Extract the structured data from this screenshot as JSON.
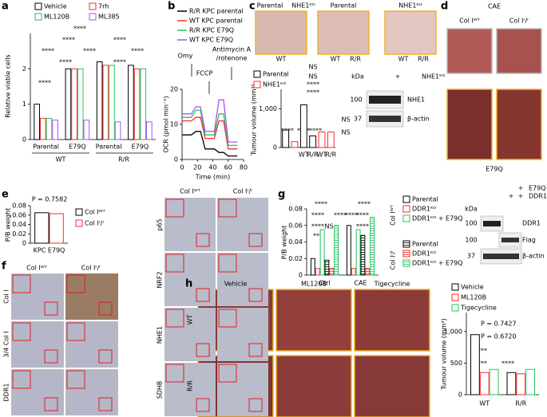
{
  "panel_labels": [
    "a",
    "b",
    "c",
    "d",
    "e",
    "f",
    "g",
    "h"
  ],
  "chart_data": [
    {
      "type": "bar",
      "ylabel": "Relative viable cells",
      "categories": [
        "Parental",
        "E79Q",
        "Parental",
        "E79Q"
      ],
      "group_labels": [
        "WT",
        "R/R"
      ],
      "series": [
        {
          "name": "Vehicle",
          "color": "#000000",
          "values": [
            1.0,
            2.0,
            2.2,
            2.1
          ]
        },
        {
          "name": "7rh",
          "color": "#ff2a2a",
          "values": [
            0.6,
            2.0,
            2.1,
            2.0
          ]
        },
        {
          "name": "ML120B",
          "color": "#22c55e",
          "values": [
            0.6,
            2.0,
            2.1,
            2.0
          ]
        },
        {
          "name": "ML385",
          "color": "#a855f7",
          "values": [
            0.55,
            0.55,
            0.5,
            0.5
          ]
        }
      ],
      "ylim": [
        0,
        3
      ],
      "yticks": [
        0,
        1,
        2
      ],
      "annotations": [
        "****",
        "****",
        "****",
        "****",
        "****",
        "****",
        "****",
        "****",
        "****"
      ]
    },
    {
      "type": "line",
      "xlabel": "Time (min)",
      "ylabel": "OCR (pmol min⁻¹)",
      "x": [
        0,
        6,
        12,
        18,
        24,
        30,
        36,
        42,
        48,
        54,
        60,
        66,
        72
      ],
      "series": [
        {
          "name": "R/R KPC parental",
          "color": "#000000",
          "values": [
            7,
            7,
            7,
            8,
            8,
            3,
            3,
            3,
            2,
            2,
            1,
            1,
            1
          ]
        },
        {
          "name": "WT KPC parental",
          "color": "#ff2a2a",
          "values": [
            11,
            11,
            11,
            12,
            12,
            6,
            6,
            6,
            11,
            11,
            3,
            3,
            3
          ]
        },
        {
          "name": "R/R KPC E79Q",
          "color": "#22c55e",
          "values": [
            12,
            12,
            12,
            14,
            14,
            7,
            7,
            7,
            13,
            13,
            4,
            4,
            4
          ]
        },
        {
          "name": "WT KPC E79Q",
          "color": "#a855f7",
          "values": [
            13,
            13,
            13,
            15,
            15,
            8,
            8,
            8,
            17,
            17,
            5,
            5,
            5
          ]
        }
      ],
      "xlim": [
        0,
        80
      ],
      "xticks": [
        0,
        20,
        40,
        60,
        80
      ],
      "ylim": [
        0,
        20
      ],
      "yticks": [
        0,
        10,
        20
      ],
      "annotations": [
        "Omy",
        "FCCP",
        "Antimycin A",
        "/rotenone"
      ]
    },
    {
      "type": "bar",
      "ylabel": "Tumour volume (mm³)",
      "categories": [
        null,
        null,
        "WT",
        "R/R",
        "WT",
        "R/R"
      ],
      "series": [
        {
          "name": "Parental",
          "color": "#000000",
          "values": [
            450,
            null,
            1100,
            300,
            null,
            null
          ]
        },
        {
          "name": "NHE1ᴷᴼ",
          "color": "#ff2a2a",
          "values": [
            null,
            150,
            null,
            null,
            400,
            400
          ]
        }
      ],
      "ylim": [
        0,
        1500
      ],
      "yticks": [
        0,
        {
          "value": 1000,
          "label": "1,000"
        }
      ],
      "annotations": [
        "NS",
        "NS",
        "****",
        "****",
        "****",
        "****",
        "****",
        "NS",
        "NS"
      ]
    },
    {
      "type": "bar",
      "ylabel": "P/B weight",
      "categories": [
        "KPC E79Q"
      ],
      "series": [
        {
          "name": "Col Iᵂᵀ",
          "color": "#000000",
          "values": [
            0.065
          ]
        },
        {
          "name": "Col Iʳ/ʳ",
          "color": "#ff2a2a",
          "values": [
            0.063
          ]
        }
      ],
      "ylim": [
        0,
        0.08
      ],
      "yticks": [
        0,
        0.02,
        0.04,
        0.06,
        0.08
      ],
      "annotations": [
        "P = 0.7582"
      ]
    },
    {
      "type": "bar",
      "ylabel": "P/B weight",
      "categories": [
        "Ctrl",
        "CAE"
      ],
      "legend_groups": [
        "Col Iᵂᵀ",
        "Col Iʳ/ʳ"
      ],
      "series": [
        {
          "name": "Parental",
          "color": "#000000",
          "values": [
            0.02,
            0.06
          ]
        },
        {
          "name": "DDR1ᴷᴼ",
          "color": "#ff2a2a",
          "values": [
            0.008,
            0.008
          ]
        },
        {
          "name": "DDR1ᴷᴼ + E79Q",
          "color": "#22c55e",
          "values": [
            0.055,
            0.055
          ]
        },
        {
          "name": "Parental",
          "color": "#000000",
          "pattern": "hatched",
          "values": [
            0.018,
            0.048
          ]
        },
        {
          "name": "DDR1ᴷᴼ",
          "color": "#ff2a2a",
          "pattern": "hatched",
          "values": [
            0.008,
            0.008
          ]
        },
        {
          "name": "DDR1ᴷᴼ + E79Q",
          "color": "#22c55e",
          "pattern": "hatched",
          "values": [
            0.06,
            0.07
          ]
        }
      ],
      "ylim": [
        0,
        0.08
      ],
      "yticks": [
        0,
        0.02,
        0.04,
        0.06,
        0.08
      ],
      "annotations": [
        "****",
        "****",
        "****",
        "****",
        "***",
        "NS",
        "****",
        "****",
        "****",
        "****"
      ]
    },
    {
      "type": "bar",
      "ylabel": "Tumour volume (mm³)",
      "categories": [
        "WT",
        "R/R"
      ],
      "series": [
        {
          "name": "Vehicle",
          "color": "#000000",
          "values": [
            950,
            350
          ]
        },
        {
          "name": "ML120B",
          "color": "#ff2a2a",
          "values": [
            350,
            330
          ]
        },
        {
          "name": "Tigecycline",
          "color": "#22c55e",
          "values": [
            400,
            400
          ]
        }
      ],
      "ylim": [
        0,
        1300
      ],
      "yticks": [
        0,
        500,
        {
          "value": 1000,
          "label": "1,000"
        }
      ],
      "annotations": [
        "P = 0.7427",
        "P = 0.6720",
        "****",
        "****",
        "****"
      ]
    }
  ],
  "labels": {
    "c_photo": [
      "Parental",
      "NHE1ᴷᴼ",
      "Parental",
      "NHE1ᴷᴼ",
      "WT",
      "WT",
      "R/R",
      "WT",
      "R/R"
    ],
    "c_blot": [
      "kDa",
      "+",
      "NHE1ᴷᴼ",
      "100",
      "37",
      "NHE1",
      "β-actin"
    ],
    "d": [
      "CAE",
      "Col Iᵂᵀ",
      "Col Iʳ/ʳ",
      "E79Q"
    ],
    "f": [
      "Col Iᵂᵀ",
      "Col Iʳ/ʳ",
      "Col I",
      "3/4 Col I",
      "DDR1",
      "Col Iᵂᵀ",
      "Col Iʳ/ʳ",
      "p65",
      "NRF2",
      "NHE1",
      "SDHB"
    ],
    "g_blot": [
      "+",
      "E79Q",
      "+",
      "+",
      "DDR1ᴷᴼ",
      "kDa",
      "100",
      "DDR1",
      "100",
      "Flag",
      "37",
      "β-actin"
    ],
    "h": [
      "Vehicle",
      "ML120B",
      "Tigecycline",
      "WT",
      "R/R"
    ]
  }
}
